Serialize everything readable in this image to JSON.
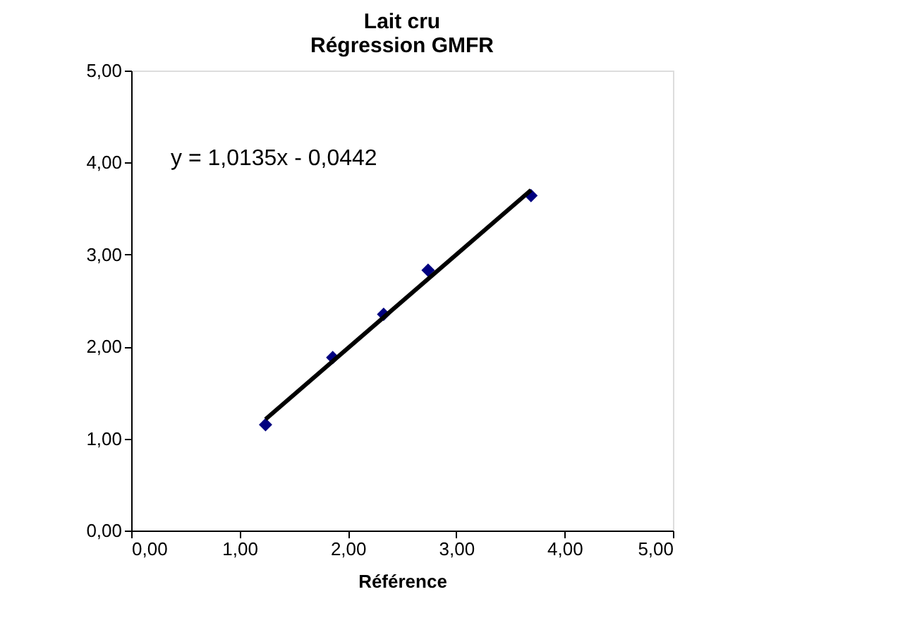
{
  "chart_data": {
    "type": "scatter",
    "title": "Lait cru",
    "subtitle": "Régression GMFR",
    "xlabel": "Référence",
    "annotations": [
      "y = 1,0135x - 0,0442"
    ],
    "series": [
      {
        "type": "scatter",
        "color": "#000080",
        "marker": "diamond",
        "x": [
          1.24,
          1.86,
          2.33,
          2.74,
          3.69
        ],
        "values": [
          1.15,
          1.88,
          2.35,
          2.83,
          3.64
        ]
      },
      {
        "type": "line",
        "color": "#000000",
        "line_style": "solid",
        "x": [
          1.24,
          3.69
        ],
        "values": [
          1.21,
          3.7
        ]
      }
    ],
    "xlim": [
      0,
      5
    ],
    "ylim": [
      0,
      5
    ],
    "xticks": [
      {
        "value": 0,
        "label": "0,00"
      },
      {
        "value": 1,
        "label": "1,00"
      },
      {
        "value": 2,
        "label": "2,00"
      },
      {
        "value": 3,
        "label": "3,00"
      },
      {
        "value": 4,
        "label": "4,00"
      },
      {
        "value": 5,
        "label": "5,00"
      }
    ],
    "yticks": [
      {
        "value": 0,
        "label": "0,00"
      },
      {
        "value": 1,
        "label": "1,00"
      },
      {
        "value": 2,
        "label": "2,00"
      },
      {
        "value": 3,
        "label": "3,00"
      },
      {
        "value": 4,
        "label": "4,00"
      },
      {
        "value": 5,
        "label": "5,00"
      }
    ],
    "grid": false
  }
}
